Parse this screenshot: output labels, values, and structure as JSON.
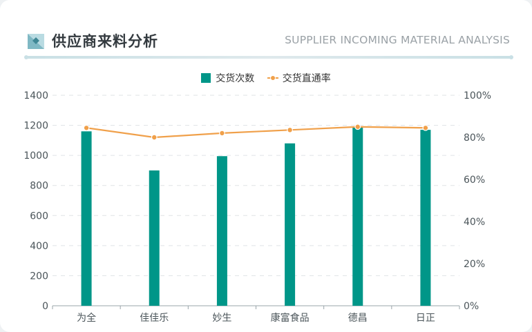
{
  "header": {
    "title": "供应商来料分析",
    "subtitle": "SUPPLIER INCOMING MATERIAL ANALYSIS"
  },
  "colors": {
    "bar": "#009688",
    "line": "#f0a04a",
    "grid": "#dfe3e6",
    "axis_text": "#4a5459"
  },
  "chart_data": {
    "type": "bar",
    "categories": [
      "为全",
      "佳佳乐",
      "妙生",
      "康富食品",
      "德昌",
      "日正"
    ],
    "series": [
      {
        "name": "交货次数",
        "type": "bar",
        "axis": "left",
        "values": [
          1160,
          900,
          995,
          1080,
          1190,
          1170
        ]
      },
      {
        "name": "交货直通率",
        "type": "line",
        "axis": "right",
        "values": [
          0.845,
          0.8,
          0.82,
          0.835,
          0.85,
          0.845
        ]
      }
    ],
    "y_left": {
      "min": 0,
      "max": 1400,
      "ticks": [
        0,
        200,
        400,
        600,
        800,
        1000,
        1200,
        1400
      ]
    },
    "y_right": {
      "min": 0,
      "max": 1,
      "ticks": [
        "0%",
        "20%",
        "40%",
        "60%",
        "80%",
        "100%"
      ]
    },
    "grid": true,
    "legend": "top-center"
  }
}
